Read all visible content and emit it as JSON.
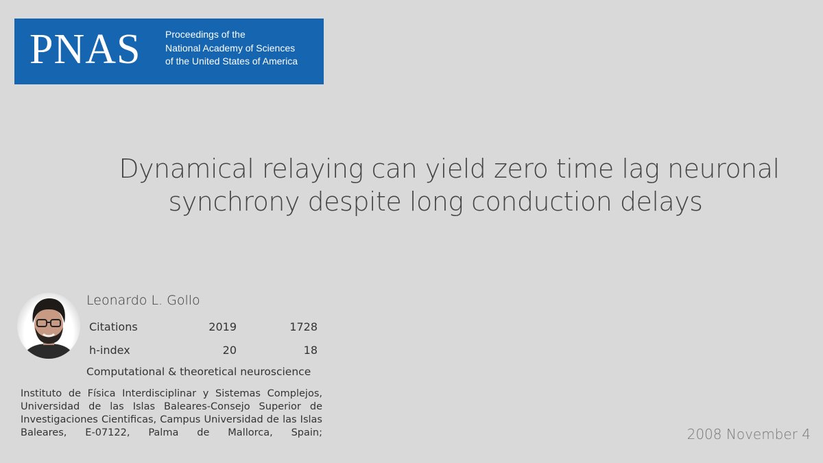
{
  "journal": {
    "abbreviation": "PNAS",
    "full_name_lines": [
      "Proceedings of the",
      "National Academy of Sciences",
      "of the United States of America"
    ],
    "banner_color": "#1565b0"
  },
  "paper": {
    "title_lines": [
      "Dynamical relaying can yield zero time lag neuronal",
      "synchrony despite long conduction delays"
    ],
    "date": "2008 November 4"
  },
  "author": {
    "name": "Leonardo L. Gollo",
    "metrics": [
      {
        "label": "Citations",
        "value_1": "2019",
        "value_2": "1728"
      },
      {
        "label": "h-index",
        "value_1": "20",
        "value_2": "18"
      }
    ],
    "field": "Computational & theoretical neuroscience",
    "affiliation": "Instituto de Física Interdisciplinar y Sistemas Complejos, Universidad de las Islas Baleares-Consejo Superior de Investigaciones Cientificas, Campus Universidad de las Islas Baleares, E-07122, Palma de Mallorca, Spain;"
  },
  "colors": {
    "background": "#d9d9d9",
    "text": "#333333",
    "date_text": "#777777"
  }
}
